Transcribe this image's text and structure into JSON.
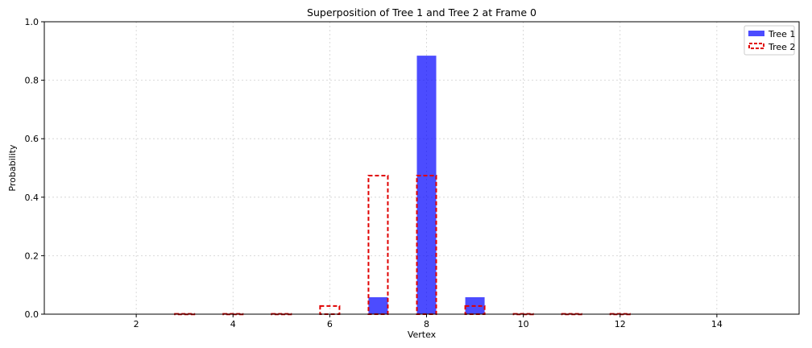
{
  "chart_data": {
    "type": "bar",
    "title": "Superposition of Tree 1 and Tree 2 at Frame 0",
    "xlabel": "Vertex",
    "ylabel": "Probability",
    "xlim": [
      0.1,
      15.7
    ],
    "ylim": [
      0,
      1.0
    ],
    "x_ticks": [
      2,
      4,
      6,
      8,
      10,
      12,
      14
    ],
    "y_ticks": [
      0.0,
      0.2,
      0.4,
      0.6,
      0.8,
      1.0
    ],
    "grid": true,
    "legend_position": "top-right",
    "series": [
      {
        "name": "Tree 1",
        "style": "filled",
        "color": "#0000ff",
        "x": [
          1,
          2,
          3,
          4,
          5,
          6,
          7,
          8,
          9,
          10,
          11,
          12,
          13,
          14,
          15
        ],
        "values": [
          0,
          0,
          0,
          0,
          0,
          0,
          0.058,
          0.884,
          0.058,
          0,
          0,
          0,
          0,
          0,
          0
        ]
      },
      {
        "name": "Tree 2",
        "style": "dashed-outline",
        "color": "#e00000",
        "x": [
          1,
          2,
          3,
          4,
          5,
          6,
          7,
          8,
          9,
          10,
          11,
          12,
          13,
          14,
          15
        ],
        "values": [
          0,
          0,
          0.001,
          0.001,
          0.001,
          0.028,
          0.474,
          0.474,
          0.028,
          0.001,
          0.001,
          0.001,
          0,
          0,
          0
        ]
      }
    ]
  }
}
